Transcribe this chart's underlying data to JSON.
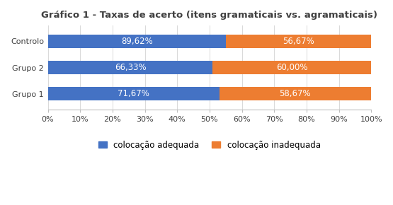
{
  "title": "Gráfico 1 - Taxas de acerto (itens gramaticais vs. agramaticais)",
  "categories": [
    "Grupo 1",
    "Grupo 2",
    "Controlo"
  ],
  "blue_labels": [
    "71,67%",
    "66,33%",
    "89,62%"
  ],
  "orange_labels": [
    "58,67%",
    "60,00%",
    "56,67%"
  ],
  "blue_pct": [
    53.0,
    51.0,
    55.0
  ],
  "orange_pct": [
    47.0,
    49.0,
    45.0
  ],
  "blue_color": "#4472C4",
  "orange_color": "#ED7D31",
  "legend_blue": "colocação adequada",
  "legend_orange": "colocação inadequada",
  "xlim": [
    0,
    100
  ],
  "xticks": [
    0,
    10,
    20,
    30,
    40,
    50,
    60,
    70,
    80,
    90,
    100
  ],
  "xtick_labels": [
    "0%",
    "10%",
    "20%",
    "30%",
    "40%",
    "50%",
    "60%",
    "70%",
    "80%",
    "90%",
    "100%"
  ],
  "bar_width": 0.52,
  "background_color": "#FFFFFF",
  "plot_bg_color": "#FFFFFF",
  "title_fontsize": 9.5,
  "label_fontsize": 8.5,
  "tick_fontsize": 8,
  "legend_fontsize": 8.5,
  "grid_color": "#D9D9D9",
  "border_color": "#BFBFBF",
  "text_color": "#404040"
}
